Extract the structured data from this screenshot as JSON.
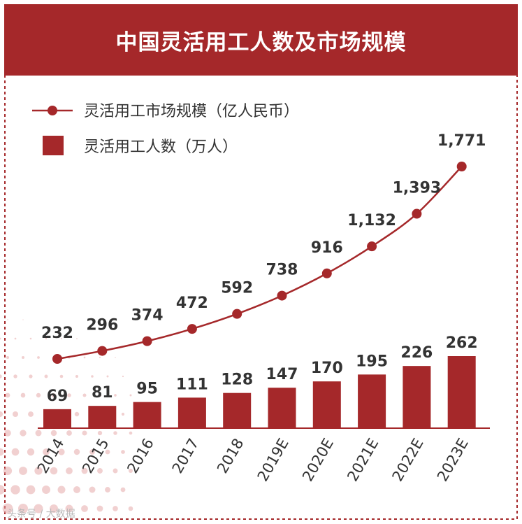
{
  "title": "中国灵活用工人数及市场规模",
  "colors": {
    "accent": "#a5282a",
    "text": "#333333",
    "frame": "#a5282a"
  },
  "chart_data": {
    "type": "bar+line",
    "title": "中国灵活用工人数及市场规模",
    "categories": [
      "2014",
      "2015",
      "2016",
      "2017",
      "2018",
      "2019E",
      "2020E",
      "2021E",
      "2022E",
      "2023E"
    ],
    "series": [
      {
        "name": "灵活用工市场规模（亿人民币）",
        "type": "line",
        "values": [
          232,
          296,
          374,
          472,
          592,
          738,
          916,
          1132,
          1393,
          1771
        ],
        "labels": [
          "232",
          "296",
          "374",
          "472",
          "592",
          "738",
          "916",
          "1,132",
          "1,393",
          "1,771"
        ]
      },
      {
        "name": "灵活用工人数（万人）",
        "type": "bar",
        "values": [
          69,
          81,
          95,
          111,
          128,
          147,
          170,
          195,
          226,
          262
        ],
        "labels": [
          "69",
          "81",
          "95",
          "111",
          "128",
          "147",
          "170",
          "195",
          "226",
          "262"
        ]
      }
    ],
    "legend": [
      "灵活用工市场规模（亿人民币）",
      "灵活用工人数（万人）"
    ],
    "legend_position": "top-left",
    "xlabel": "",
    "ylabel": "",
    "grid": false
  },
  "watermark": "头条号 / 大数据"
}
